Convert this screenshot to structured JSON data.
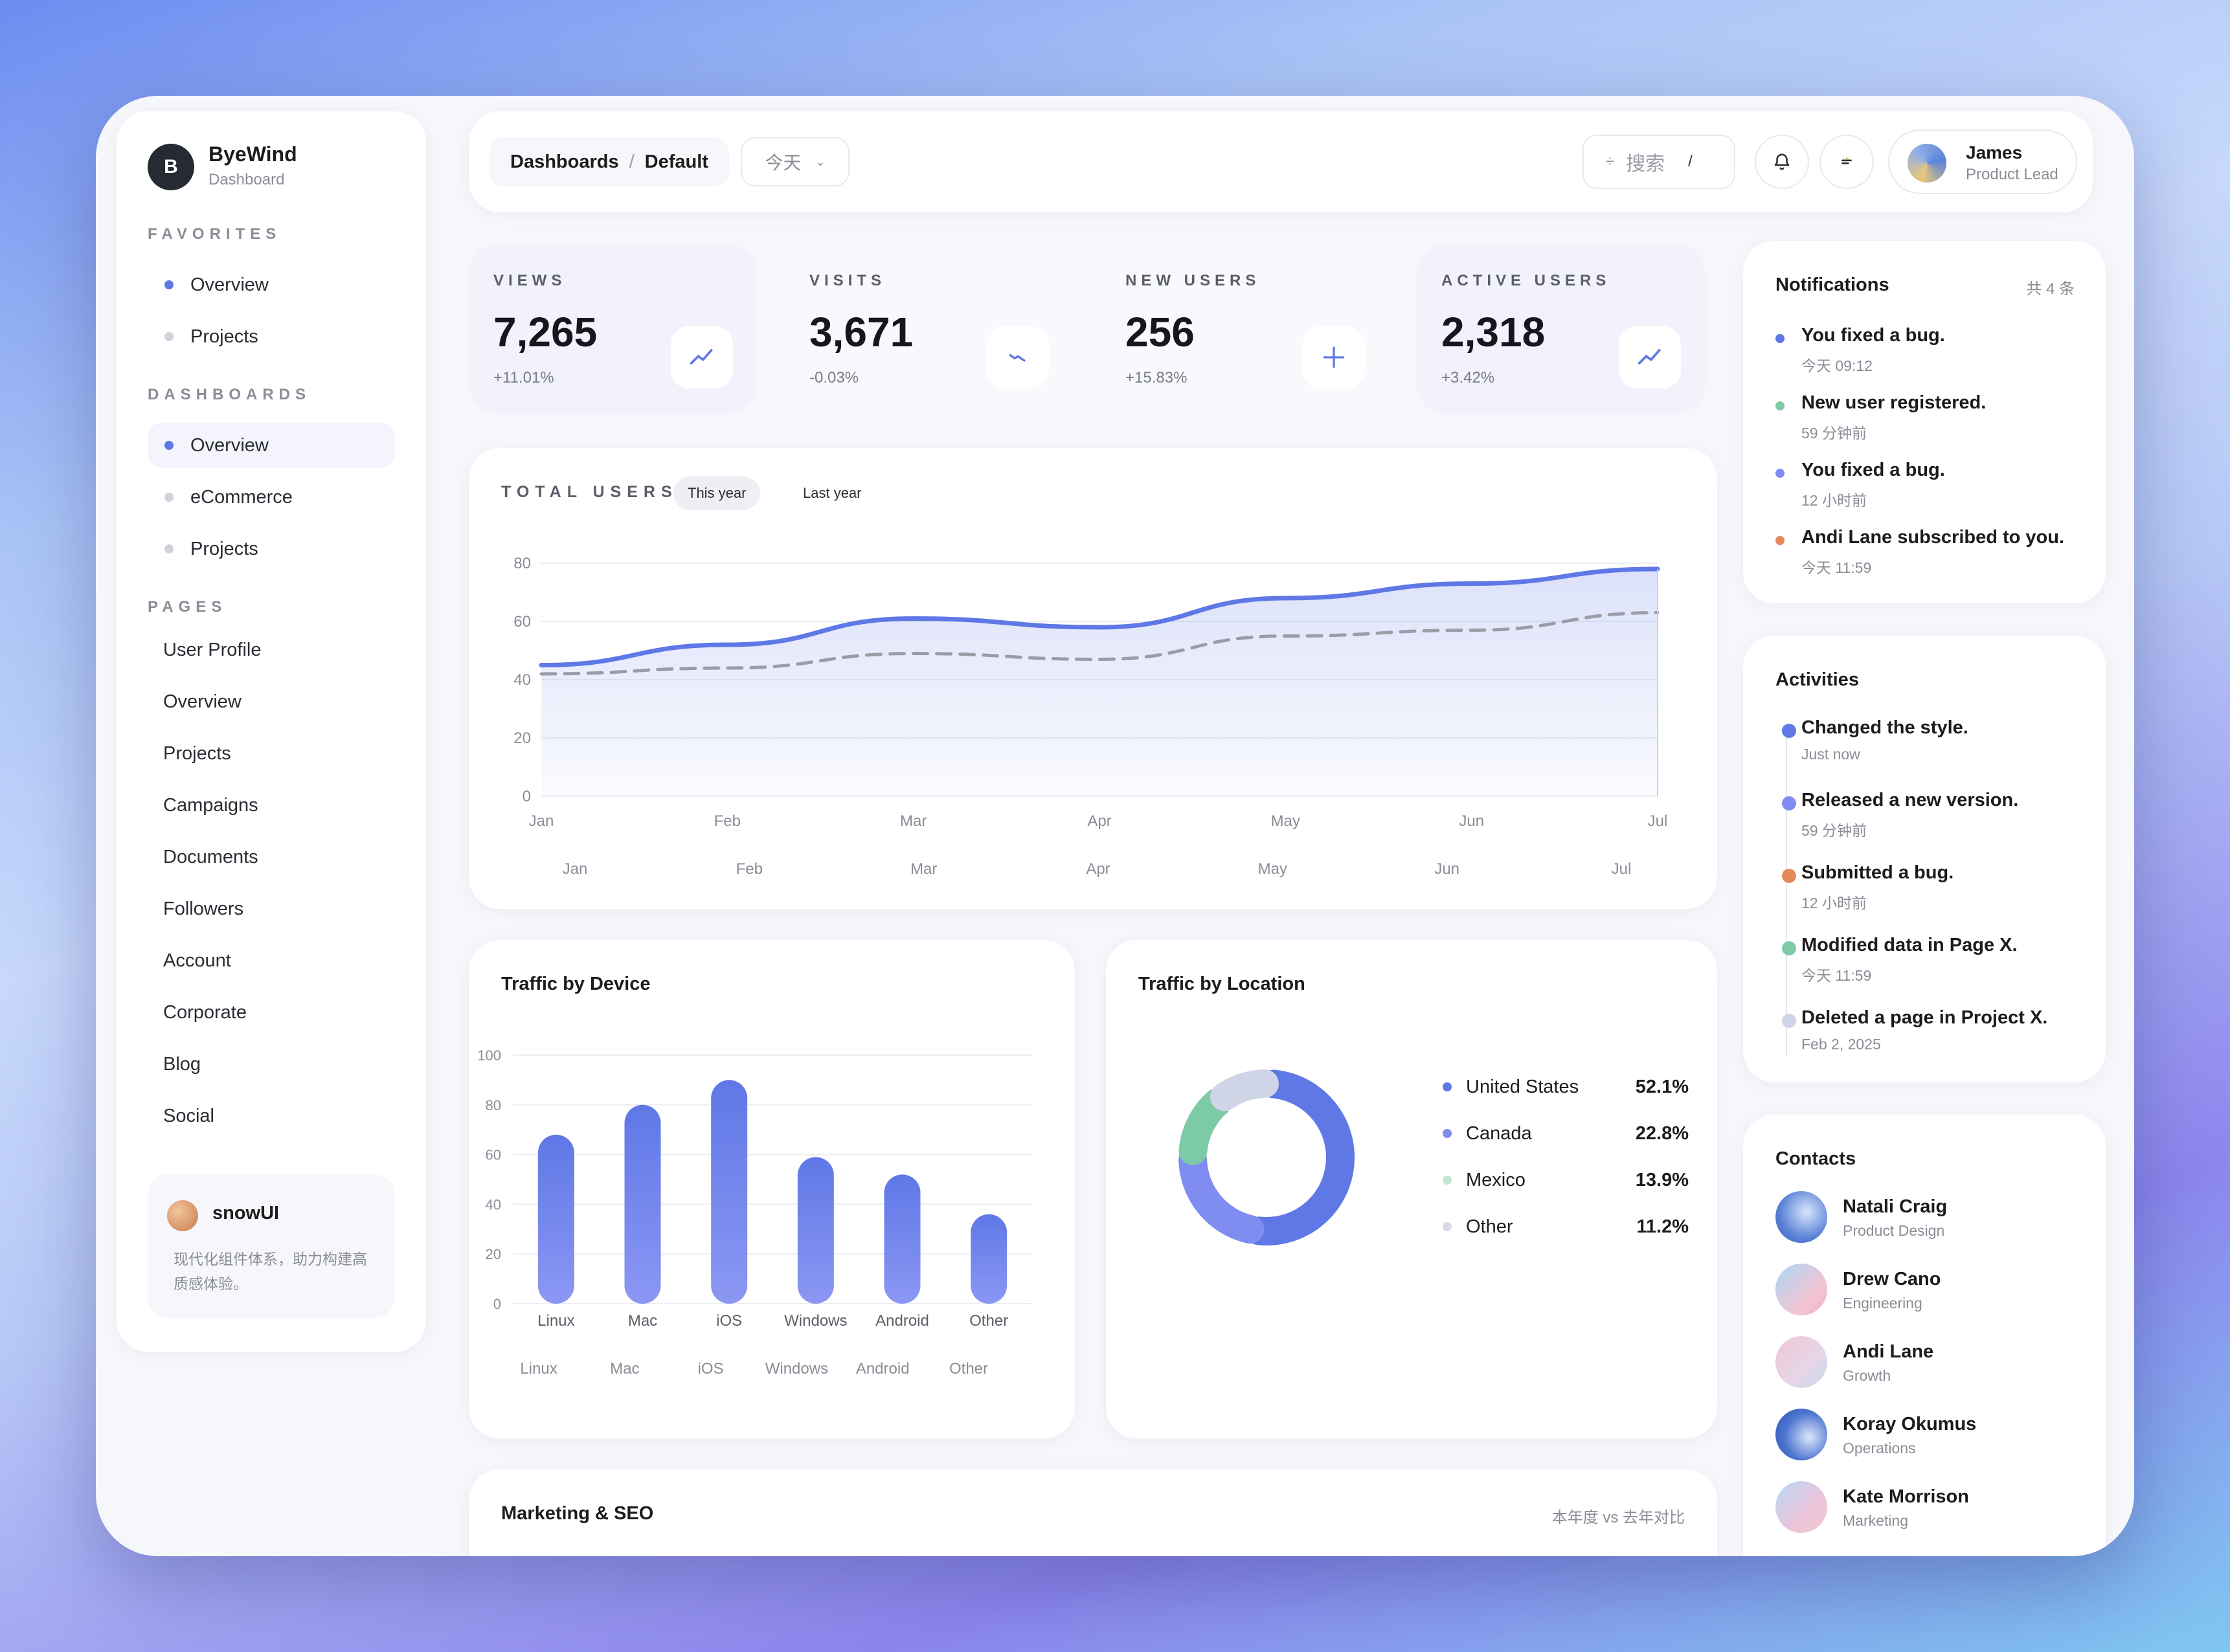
{
  "brand": {
    "logo_letter": "B",
    "name": "ByeWind",
    "sub": "Dashboard"
  },
  "sidebar": {
    "favorites_title": "FAVORITES",
    "favorites": [
      "Overview",
      "Projects"
    ],
    "dashboards_title": "DASHBOARDS",
    "dashboards": [
      "Overview",
      "eCommerce",
      "Projects"
    ],
    "pages_title": "PAGES",
    "pages": [
      "User Profile",
      "Overview",
      "Projects",
      "Campaigns",
      "Documents",
      "Followers",
      "Account",
      "Corporate",
      "Blog",
      "Social"
    ],
    "promo": {
      "name": "snowUI",
      "desc": "现代化组件体系，助力构建高质感体验。"
    }
  },
  "header": {
    "crumb_1": "Dashboards",
    "crumb_sep": "/",
    "crumb_2": "Default",
    "date_filter": "今天",
    "search_placeholder": "搜索",
    "search_shortcut": "/",
    "user": {
      "name": "James",
      "role": "Product Lead"
    }
  },
  "kpis": [
    {
      "title": "VIEWS",
      "value": "7,265",
      "delta": "+11.01%",
      "icon": "trend-up-icon"
    },
    {
      "title": "VISITS",
      "value": "3,671",
      "delta": "-0.03%",
      "icon": "trend-down-icon"
    },
    {
      "title": "NEW USERS",
      "value": "256",
      "delta": "+15.83%",
      "icon": "plus-icon"
    },
    {
      "title": "ACTIVE USERS",
      "value": "2,318",
      "delta": "+3.42%",
      "icon": "trend-up-icon"
    }
  ],
  "total_users": {
    "title": "TOTAL USERS",
    "tab_1": "This year",
    "tab_2": "Last year"
  },
  "traffic_device_title": "Traffic by Device",
  "traffic_location": {
    "title": "Traffic by Location",
    "legend": [
      {
        "name": "United States",
        "value": "52.1%",
        "color": "#5f78e6"
      },
      {
        "name": "Canada",
        "value": "22.8%",
        "color": "#7f8cf0"
      },
      {
        "name": "Mexico",
        "value": "13.9%",
        "color": "#7dcaa6"
      },
      {
        "name": "Other",
        "value": "11.2%",
        "color": "#cfd4e6"
      }
    ]
  },
  "seo": {
    "title": "Marketing & SEO",
    "note": "本年度 vs 去年对比"
  },
  "notifications": {
    "title": "Notifications",
    "count": "共 4 条",
    "items": [
      {
        "text": "You fixed a bug.",
        "time": "今天 09:12",
        "color": "#5f78e6"
      },
      {
        "text": "New user registered.",
        "time": "59 分钟前",
        "color": "#7dcaa6"
      },
      {
        "text": "You fixed a bug.",
        "time": "12 小时前",
        "color": "#7f8cf0"
      },
      {
        "text": "Andi Lane subscribed to you.",
        "time": "今天 11:59",
        "color": "#e28a5a"
      }
    ]
  },
  "activities": {
    "title": "Activities",
    "items": [
      {
        "text": "Changed the style.",
        "time": "Just now",
        "color": "#5f78e6"
      },
      {
        "text": "Released a new version.",
        "time": "59 分钟前",
        "color": "#7f8cf0"
      },
      {
        "text": "Submitted a bug.",
        "time": "12 小时前",
        "color": "#e28a5a"
      },
      {
        "text": "Modified data in Page X.",
        "time": "今天 11:59",
        "color": "#7dcaa6"
      },
      {
        "text": "Deleted a page in Project X.",
        "time": "Feb 2, 2025",
        "color": "#cfd4e6"
      }
    ]
  },
  "contacts": {
    "title": "Contacts",
    "items": [
      {
        "name": "Natali Craig",
        "role": "Product Design"
      },
      {
        "name": "Drew Cano",
        "role": "Engineering"
      },
      {
        "name": "Andi Lane",
        "role": "Growth"
      },
      {
        "name": "Koray Okumus",
        "role": "Operations"
      },
      {
        "name": "Kate Morrison",
        "role": "Marketing"
      }
    ]
  },
  "chart_data": [
    {
      "type": "line",
      "title": "TOTAL USERS",
      "x": [
        "Jan",
        "Feb",
        "Mar",
        "Apr",
        "May",
        "Jun",
        "Jul"
      ],
      "x_secondary_labels": [
        "Jan",
        "Feb",
        "Mar",
        "Apr",
        "May",
        "Jun",
        "Jul"
      ],
      "ylim": [
        0,
        80
      ],
      "yticks": [
        0,
        20,
        40,
        60,
        80
      ],
      "series": [
        {
          "name": "This year",
          "values": [
            45,
            52,
            61,
            58,
            68,
            73,
            78
          ],
          "style": "solid",
          "color": "#5f78e6",
          "fill": true
        },
        {
          "name": "Last year",
          "values": [
            42,
            44,
            49,
            47,
            55,
            57,
            63
          ],
          "style": "dashed",
          "color": "#9a9da6"
        }
      ],
      "grid": true
    },
    {
      "type": "bar",
      "title": "Traffic by Device",
      "categories": [
        "Linux",
        "Mac",
        "iOS",
        "Windows",
        "Android",
        "Other"
      ],
      "x_secondary_labels": [
        "Linux",
        "Mac",
        "iOS",
        "Windows",
        "Android",
        "Other"
      ],
      "values": [
        68,
        80,
        90,
        59,
        52,
        36
      ],
      "ylim": [
        0,
        100
      ],
      "yticks": [
        0,
        20,
        40,
        60,
        80,
        100
      ],
      "ytick_labels": [
        "0",
        "20",
        "40",
        "60",
        "80",
        "100"
      ],
      "grid": true,
      "color": "#6a80ec"
    },
    {
      "type": "pie",
      "title": "Traffic by Location",
      "labels": [
        "United States",
        "Canada",
        "Mexico",
        "Other"
      ],
      "values": [
        52.1,
        22.8,
        13.9,
        11.2
      ],
      "colors": [
        "#5f78e6",
        "#7f8cf0",
        "#7dcaa6",
        "#cfd4e6"
      ],
      "donut": true
    }
  ]
}
